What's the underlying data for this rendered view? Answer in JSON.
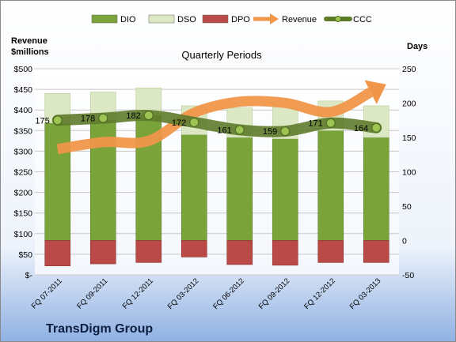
{
  "chart_data": {
    "type": "bar",
    "title": "Quarterly Periods",
    "company": "TransDigm Group",
    "ylabel_left": "Revenue\n$millions",
    "ylabel_right": "Days",
    "categories": [
      "FQ 07-2011",
      "FQ 09-2011",
      "FQ 12-2011",
      "FQ 03-2012",
      "FQ 06-2012",
      "FQ 09-2012",
      "FQ 12-2012",
      "FQ 03-2013"
    ],
    "left_axis": {
      "ylim": [
        0,
        500
      ],
      "ticks": [
        0,
        50,
        100,
        150,
        200,
        250,
        300,
        350,
        400,
        450,
        500
      ],
      "tick_labels": [
        "$-",
        "$50",
        "$100",
        "$150",
        "$200",
        "$250",
        "$300",
        "$350",
        "$400",
        "$450",
        "$500"
      ]
    },
    "right_axis": {
      "ylim": [
        -50,
        250
      ],
      "ticks": [
        -50,
        0,
        50,
        100,
        150,
        200,
        250
      ],
      "tick_labels": [
        "-50",
        "0",
        "50",
        "100",
        "150",
        "200",
        "250"
      ]
    },
    "legend_position": "top",
    "series": [
      {
        "name": "DIO",
        "kind": "stacked-bar",
        "axis": "right",
        "color": "#7aa33a",
        "values": [
          171,
          175,
          182,
          154,
          150,
          148,
          160,
          150
        ]
      },
      {
        "name": "DSO",
        "kind": "stacked-bar",
        "axis": "right",
        "color": "#dce8c4",
        "values": [
          43,
          41,
          40,
          42,
          43,
          46,
          43,
          46
        ]
      },
      {
        "name": "DPO",
        "kind": "negative-bar",
        "axis": "right",
        "color": "#b94a48",
        "values": [
          -37,
          -34,
          -32,
          -24,
          -35,
          -36,
          -32,
          -32
        ]
      },
      {
        "name": "Revenue",
        "kind": "arrow-line",
        "axis": "left",
        "color": "#f0964a",
        "values": [
          305,
          322,
          325,
          393,
          420,
          417,
          395,
          450
        ]
      },
      {
        "name": "CCC",
        "kind": "line-markers",
        "axis": "right",
        "color": "#5e7b2c",
        "values": [
          175,
          178,
          182,
          172,
          161,
          159,
          171,
          164
        ],
        "data_labels": [
          "175",
          "178",
          "182",
          "172",
          "161",
          "159",
          "171",
          "164"
        ]
      }
    ],
    "grid": true
  }
}
